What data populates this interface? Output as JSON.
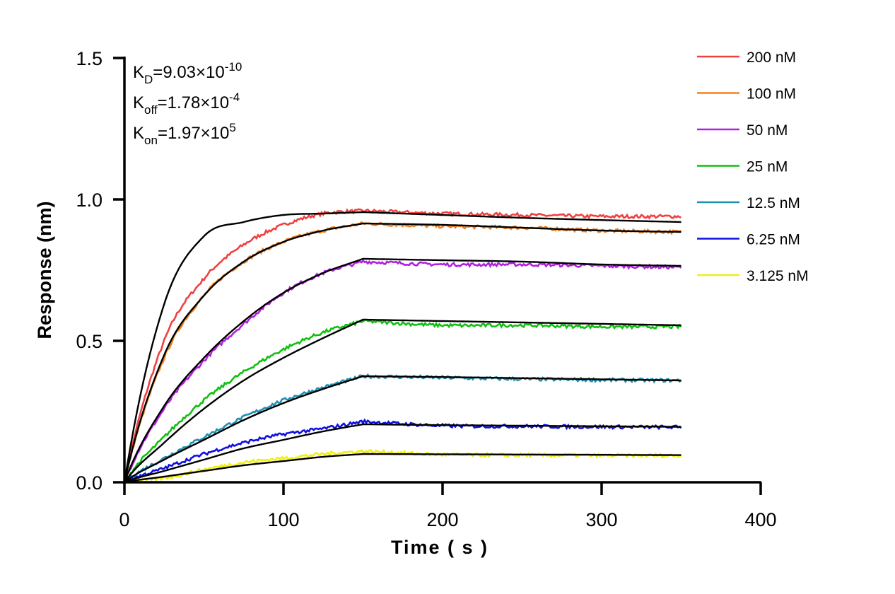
{
  "chart_data": {
    "type": "line",
    "xlabel": "Time ( s )",
    "ylabel": "Response (nm)",
    "xlim": [
      0,
      400
    ],
    "ylim": [
      0,
      1.5
    ],
    "x_ticks": [
      "0",
      "100",
      "200",
      "300",
      "400"
    ],
    "y_ticks": [
      "0.0",
      "0.5",
      "1.0",
      "1.5"
    ],
    "grid": false,
    "legend_placement": "top-right",
    "annotations": [
      {
        "base": "K",
        "sub": "D",
        "value": "=9.03×10",
        "exp": "-10"
      },
      {
        "base": "K",
        "sub": "off",
        "value": "=1.78×10",
        "exp": "-4"
      },
      {
        "base": "K",
        "sub": "on",
        "value": "=1.97×10",
        "exp": "5"
      }
    ],
    "x": [
      0,
      25,
      50,
      75,
      100,
      125,
      150,
      200,
      250,
      300,
      350
    ],
    "series": [
      {
        "name": "200 nM",
        "color": "#f04040",
        "values": [
          0,
          0.5,
          0.72,
          0.84,
          0.91,
          0.95,
          0.96,
          0.95,
          0.945,
          0.94,
          0.94
        ],
        "fit": [
          0,
          0.63,
          0.87,
          0.92,
          0.945,
          0.95,
          0.955,
          0.945,
          0.935,
          0.927,
          0.92
        ]
      },
      {
        "name": "100 nM",
        "color": "#f08020",
        "values": [
          0,
          0.44,
          0.66,
          0.78,
          0.85,
          0.89,
          0.915,
          0.905,
          0.9,
          0.89,
          0.885
        ],
        "fit": [
          0,
          0.45,
          0.66,
          0.78,
          0.85,
          0.89,
          0.915,
          0.91,
          0.9,
          0.89,
          0.885
        ]
      },
      {
        "name": "50 nM",
        "color": "#b020e0",
        "values": [
          0,
          0.26,
          0.43,
          0.56,
          0.67,
          0.74,
          0.78,
          0.77,
          0.77,
          0.765,
          0.76
        ],
        "fit": [
          0,
          0.27,
          0.44,
          0.57,
          0.67,
          0.74,
          0.79,
          0.785,
          0.78,
          0.77,
          0.765
        ]
      },
      {
        "name": "25 nM",
        "color": "#10c010",
        "values": [
          0,
          0.16,
          0.29,
          0.39,
          0.47,
          0.53,
          0.57,
          0.555,
          0.555,
          0.55,
          0.55
        ],
        "fit": [
          0,
          0.14,
          0.26,
          0.36,
          0.44,
          0.51,
          0.575,
          0.57,
          0.565,
          0.56,
          0.555
        ]
      },
      {
        "name": "12.5 nM",
        "color": "#2090b0",
        "values": [
          0,
          0.085,
          0.16,
          0.23,
          0.29,
          0.335,
          0.375,
          0.37,
          0.365,
          0.362,
          0.36
        ],
        "fit": [
          0,
          0.08,
          0.15,
          0.22,
          0.28,
          0.33,
          0.375,
          0.372,
          0.368,
          0.364,
          0.36
        ]
      },
      {
        "name": "6.25 nM",
        "color": "#1010e0",
        "values": [
          0,
          0.05,
          0.1,
          0.14,
          0.17,
          0.19,
          0.215,
          0.2,
          0.198,
          0.196,
          0.195
        ],
        "fit": [
          0,
          0.04,
          0.08,
          0.12,
          0.15,
          0.18,
          0.205,
          0.202,
          0.2,
          0.198,
          0.196
        ]
      },
      {
        "name": "3.125 nM",
        "color": "#f0f010",
        "values": [
          0,
          0.015,
          0.045,
          0.07,
          0.085,
          0.1,
          0.11,
          0.098,
          0.096,
          0.095,
          0.095
        ],
        "fit": [
          0,
          0.02,
          0.04,
          0.06,
          0.075,
          0.09,
          0.1,
          0.099,
          0.098,
          0.097,
          0.096
        ]
      }
    ]
  }
}
